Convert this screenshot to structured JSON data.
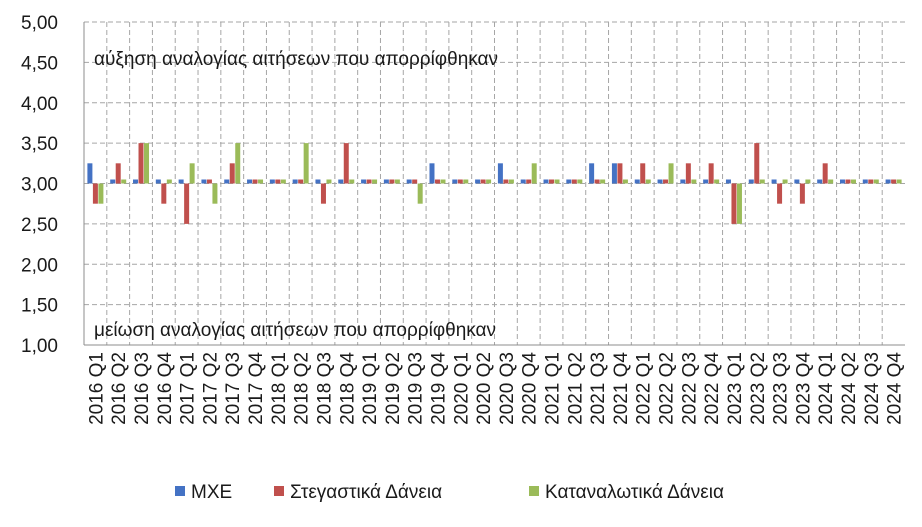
{
  "chart_data": {
    "type": "bar",
    "categories": [
      "2016 Q1",
      "2016 Q2",
      "2016 Q3",
      "2016 Q4",
      "2017 Q1",
      "2017 Q2",
      "2017 Q3",
      "2017 Q4",
      "2018 Q1",
      "2018 Q2",
      "2018 Q3",
      "2018 Q4",
      "2019 Q1",
      "2019 Q2",
      "2019 Q3",
      "2019 Q4",
      "2020 Q1",
      "2020 Q2",
      "2020 Q3",
      "2020 Q4",
      "2021 Q1",
      "2021 Q2",
      "2021 Q3",
      "2021 Q4",
      "2022 Q1",
      "2022 Q2",
      "2022 Q3",
      "2022 Q4",
      "2023 Q1",
      "2023 Q2",
      "2023 Q3",
      "2023 Q4",
      "2024 Q1",
      "2024 Q2",
      "2024 Q3",
      "2024 Q4"
    ],
    "series": [
      {
        "name": "ΜΧΕ",
        "color": "#4472C4",
        "values": [
          3.25,
          3.0,
          3.0,
          3.0,
          3.0,
          3.0,
          3.0,
          3.0,
          3.0,
          3.0,
          3.0,
          3.0,
          3.0,
          3.0,
          3.0,
          3.25,
          3.0,
          3.0,
          3.25,
          3.0,
          3.0,
          3.0,
          3.25,
          3.25,
          3.0,
          3.0,
          3.0,
          3.0,
          3.0,
          3.0,
          3.0,
          3.0,
          3.0,
          3.0,
          3.0,
          3.0
        ]
      },
      {
        "name": "Στεγαστικά Δάνεια",
        "color": "#C0504D",
        "values": [
          2.75,
          3.25,
          3.5,
          2.75,
          2.5,
          3.0,
          3.25,
          3.0,
          3.0,
          3.0,
          2.75,
          3.5,
          3.0,
          3.0,
          3.0,
          3.0,
          3.0,
          3.0,
          3.0,
          3.0,
          3.0,
          3.0,
          3.0,
          3.25,
          3.25,
          3.0,
          3.25,
          3.25,
          2.5,
          3.5,
          2.75,
          2.75,
          3.25,
          3.0,
          3.0,
          3.0
        ]
      },
      {
        "name": "Καταναλωτικά Δάνεια",
        "color": "#9BBB59",
        "values": [
          2.75,
          3.0,
          3.5,
          3.0,
          3.25,
          2.75,
          3.5,
          3.0,
          3.0,
          3.5,
          3.0,
          3.0,
          3.0,
          3.0,
          2.75,
          3.0,
          3.0,
          3.0,
          3.0,
          3.25,
          3.0,
          3.0,
          3.0,
          3.0,
          3.0,
          3.25,
          3.0,
          3.0,
          2.5,
          3.0,
          3.0,
          3.0,
          3.0,
          3.0,
          3.0,
          3.0
        ]
      }
    ],
    "baseline": 3.0,
    "ylim": [
      1.0,
      5.0
    ],
    "yticks": [
      "1,00",
      "1,50",
      "2,00",
      "2,50",
      "3,00",
      "3,50",
      "4,00",
      "4,50",
      "5,00"
    ],
    "annotations": {
      "top": "αύξηση αναλογίας αιτήσεων που απορρίφθηκαν",
      "bottom": "μείωση αναλογίας αιτήσεων που απορρίφθηκαν"
    },
    "grid": true,
    "legend_position": "bottom"
  }
}
